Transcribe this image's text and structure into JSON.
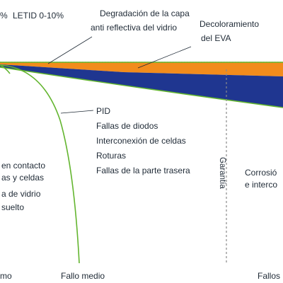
{
  "colors": {
    "orange": "#f28c1c",
    "navy": "#1f3690",
    "green": "#63b52f",
    "gray": "#8a8a8a",
    "text": "#1f2a36"
  },
  "labels": {
    "top_left_fragment": "%",
    "letid": "LETID 0-10%",
    "degradation_line1": "Degradación de la capa",
    "degradation_line2": "anti reflectiva del vidrio",
    "eva_line1": "Decoloramiento",
    "eva_line2": "del EVA",
    "corrosion_line1": "Corrosió",
    "corrosion_line2": "e interco",
    "warranty": "Garantía",
    "left_line1": "en contacto",
    "left_line2": "as y celdas",
    "left_line3": "a de vidrio",
    "left_line4": "suelto"
  },
  "failure_list": [
    "PID",
    "Fallas de diodos",
    "Interconexión de celdas",
    "Roturas",
    "Fallas de la parte trasera"
  ],
  "axis": {
    "left": "mo",
    "middle": "Fallo medio",
    "right": "Fallos"
  }
}
